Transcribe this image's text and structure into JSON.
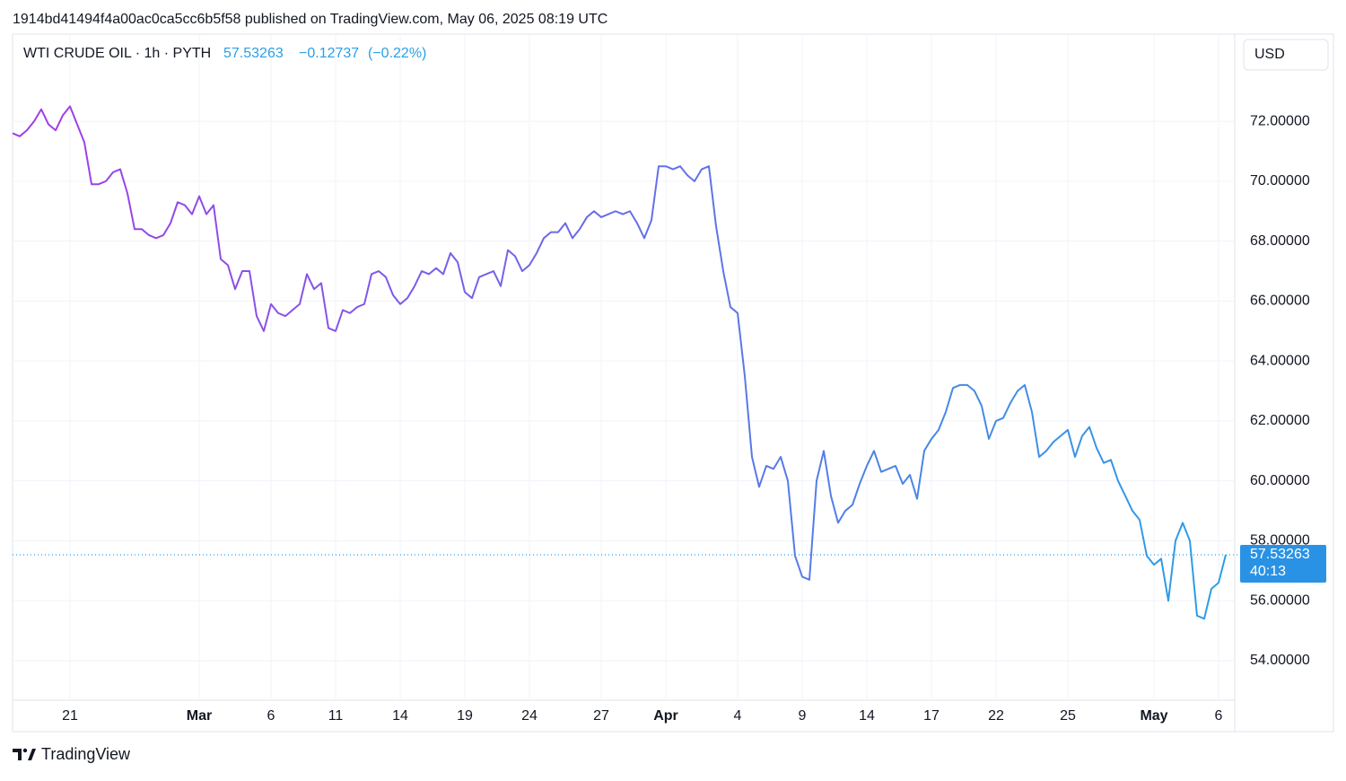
{
  "page": {
    "publish_line": "1914bd41494f4a00ac0ca5cc6b5f58 published on TradingView.com, May 06, 2025 08:19 UTC",
    "last": 57.53263,
    "change": "−0.12737",
    "change_pct": "(−0.22%)",
    "currency": "USD",
    "countdown": "40:13",
    "brand": "TradingView"
  },
  "chart_data": {
    "type": "line",
    "title": "WTI CRUDE OIL · 1h · PYTH",
    "categories": [
      null,
      null,
      null,
      null,
      null,
      null,
      null,
      null,
      "21",
      null,
      null,
      null,
      null,
      null,
      null,
      null,
      null,
      null,
      null,
      null,
      null,
      null,
      null,
      null,
      null,
      null,
      "Mar",
      null,
      null,
      null,
      null,
      null,
      null,
      null,
      null,
      null,
      "6",
      null,
      null,
      null,
      null,
      null,
      null,
      null,
      null,
      "11",
      null,
      null,
      null,
      null,
      null,
      null,
      null,
      null,
      "14",
      null,
      null,
      null,
      null,
      null,
      null,
      null,
      null,
      "19",
      null,
      null,
      null,
      null,
      null,
      null,
      null,
      null,
      "24",
      null,
      null,
      null,
      null,
      null,
      null,
      null,
      null,
      null,
      "27",
      null,
      null,
      null,
      null,
      null,
      null,
      null,
      null,
      "Apr",
      null,
      null,
      null,
      null,
      null,
      null,
      null,
      null,
      null,
      "4",
      null,
      null,
      null,
      null,
      null,
      null,
      null,
      null,
      "9",
      null,
      null,
      null,
      null,
      null,
      null,
      null,
      null,
      "14",
      null,
      null,
      null,
      null,
      null,
      null,
      null,
      null,
      "17",
      null,
      null,
      null,
      null,
      null,
      null,
      null,
      null,
      "22",
      null,
      null,
      null,
      null,
      null,
      null,
      null,
      null,
      null,
      "25",
      null,
      null,
      null,
      null,
      null,
      null,
      null,
      null,
      null,
      null,
      null,
      "May",
      null,
      null,
      null,
      null,
      null,
      null,
      null,
      null,
      "6",
      null
    ],
    "series": [
      {
        "name": "WTI CRUDE OIL",
        "colors": [
          "#a43be9",
          "#2a9fe6"
        ],
        "values": [
          71.6,
          71.5,
          71.7,
          72.0,
          72.4,
          71.9,
          71.7,
          72.2,
          72.5,
          71.9,
          71.3,
          69.9,
          69.9,
          70.0,
          70.3,
          70.4,
          69.6,
          68.4,
          68.4,
          68.2,
          68.1,
          68.2,
          68.6,
          69.3,
          69.2,
          68.9,
          69.5,
          68.9,
          69.2,
          67.4,
          67.2,
          66.4,
          67.0,
          67.0,
          65.5,
          65.0,
          65.9,
          65.6,
          65.5,
          65.7,
          65.9,
          66.9,
          66.4,
          66.6,
          65.1,
          65.0,
          65.7,
          65.6,
          65.8,
          65.9,
          66.9,
          67.0,
          66.8,
          66.2,
          65.9,
          66.1,
          66.5,
          67.0,
          66.9,
          67.1,
          66.9,
          67.6,
          67.3,
          66.3,
          66.1,
          66.8,
          66.9,
          67.0,
          66.5,
          67.7,
          67.5,
          67.0,
          67.2,
          67.6,
          68.1,
          68.3,
          68.3,
          68.6,
          68.1,
          68.4,
          68.8,
          69.0,
          68.8,
          68.9,
          69.0,
          68.9,
          69.0,
          68.6,
          68.1,
          68.7,
          70.5,
          70.5,
          70.4,
          70.5,
          70.2,
          70.0,
          70.4,
          70.5,
          68.5,
          67.0,
          65.8,
          65.6,
          63.5,
          60.8,
          59.8,
          60.5,
          60.4,
          60.8,
          60.0,
          57.5,
          56.8,
          56.7,
          60.0,
          61.0,
          59.5,
          58.6,
          59.0,
          59.2,
          59.9,
          60.5,
          61.0,
          60.3,
          60.4,
          60.5,
          59.9,
          60.2,
          59.4,
          61.0,
          61.4,
          61.7,
          62.3,
          63.1,
          63.2,
          63.2,
          63.0,
          62.5,
          61.4,
          62.0,
          62.1,
          62.6,
          63.0,
          63.2,
          62.3,
          60.8,
          61.0,
          61.3,
          61.5,
          61.7,
          60.8,
          61.5,
          61.8,
          61.1,
          60.6,
          60.7,
          60.0,
          59.5,
          59.0,
          58.7,
          57.5,
          57.2,
          57.4,
          56.0,
          58.0,
          58.6,
          58.0,
          55.5,
          55.4,
          56.4,
          56.6,
          57.53263
        ]
      }
    ],
    "ylim": [
      52.68,
      74.85
    ],
    "yticks": [
      {
        "value": 54,
        "label": "54.00000"
      },
      {
        "value": 56,
        "label": "56.00000"
      },
      {
        "value": 58,
        "label": "58.00000"
      },
      {
        "value": 60,
        "label": "60.00000"
      },
      {
        "value": 62,
        "label": "62.00000"
      },
      {
        "value": 64,
        "label": "64.00000"
      },
      {
        "value": 66,
        "label": "66.00000"
      },
      {
        "value": 68,
        "label": "68.00000"
      },
      {
        "value": 70,
        "label": "70.00000"
      },
      {
        "value": 72,
        "label": "72.00000"
      }
    ],
    "grid": true
  }
}
